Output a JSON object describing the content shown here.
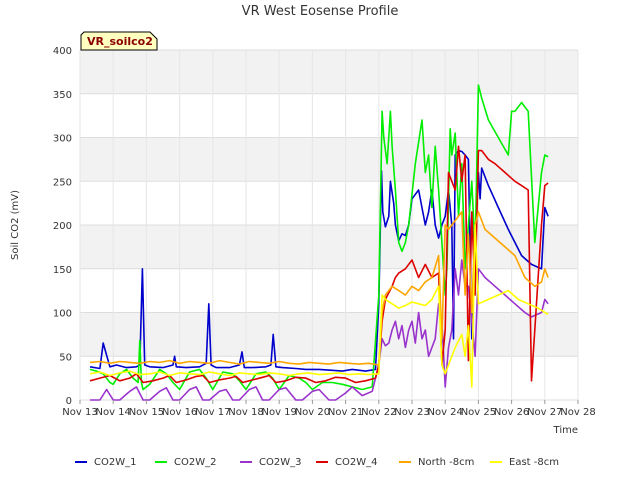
{
  "chart_data": {
    "type": "line",
    "title": "VR West Eosense Profile",
    "xlabel": "Time",
    "ylabel": "Soil CO2 (mV)",
    "ylim": [
      0,
      400
    ],
    "yticks": [
      0,
      50,
      100,
      150,
      200,
      250,
      300,
      350,
      400
    ],
    "xlim": [
      13,
      28
    ],
    "xticks": [
      {
        "value": 13,
        "label": "Nov 13"
      },
      {
        "value": 14,
        "label": "Nov 14"
      },
      {
        "value": 15,
        "label": "Nov 15"
      },
      {
        "value": 16,
        "label": "Nov 16"
      },
      {
        "value": 17,
        "label": "Nov 17"
      },
      {
        "value": 18,
        "label": "Nov 18"
      },
      {
        "value": 19,
        "label": "Nov 19"
      },
      {
        "value": 20,
        "label": "Nov 20"
      },
      {
        "value": 21,
        "label": "Nov 21"
      },
      {
        "value": 22,
        "label": "Nov 22"
      },
      {
        "value": 23,
        "label": "Nov 23"
      },
      {
        "value": 24,
        "label": "Nov 24"
      },
      {
        "value": 25,
        "label": "Nov 25"
      },
      {
        "value": 26,
        "label": "Nov 26"
      },
      {
        "value": 27,
        "label": "Nov 27"
      },
      {
        "value": 28,
        "label": "Nov 28"
      }
    ],
    "tag": "VR_soilco2",
    "grid": true,
    "legend_position": "bottom",
    "series": [
      {
        "name": "CO2W_1",
        "color": "#0000cc",
        "x": [
          13.3,
          13.6,
          13.7,
          13.9,
          14.1,
          14.4,
          14.7,
          14.8,
          14.88,
          14.95,
          15.1,
          15.5,
          15.8,
          15.85,
          15.9,
          16.2,
          16.6,
          16.8,
          16.88,
          16.95,
          17.1,
          17.5,
          17.8,
          17.88,
          17.95,
          18.2,
          18.6,
          18.75,
          18.82,
          18.9,
          19.1,
          19.5,
          19.8,
          20.2,
          20.6,
          20.9,
          21.2,
          21.6,
          21.9,
          22.0,
          22.08,
          22.12,
          22.2,
          22.3,
          22.35,
          22.45,
          22.5,
          22.6,
          22.7,
          22.8,
          22.9,
          23.0,
          23.2,
          23.4,
          23.5,
          23.6,
          23.7,
          23.8,
          23.9,
          24.0,
          24.1,
          24.2,
          24.25,
          24.3,
          24.4,
          24.5,
          24.6,
          24.7,
          24.8,
          24.9,
          25.0,
          25.05,
          25.1,
          25.3,
          25.6,
          25.9,
          26.3,
          26.6,
          26.9,
          27.0,
          27.1
        ],
        "y": [
          38,
          36,
          65,
          38,
          40,
          37,
          38,
          40,
          150,
          40,
          38,
          37,
          40,
          50,
          38,
          37,
          38,
          42,
          110,
          40,
          37,
          37,
          40,
          55,
          37,
          37,
          38,
          40,
          75,
          38,
          37,
          36,
          35,
          35,
          34,
          33,
          35,
          33,
          35,
          110,
          262,
          215,
          198,
          210,
          250,
          225,
          200,
          182,
          190,
          188,
          200,
          230,
          240,
          200,
          215,
          240,
          200,
          185,
          200,
          210,
          240,
          200,
          70,
          280,
          285,
          284,
          280,
          275,
          70,
          180,
          260,
          230,
          265,
          245,
          220,
          195,
          165,
          155,
          150,
          220,
          210
        ]
      },
      {
        "name": "CO2W_2",
        "color": "#00ee00",
        "x": [
          13.3,
          13.5,
          13.7,
          13.9,
          14.0,
          14.2,
          14.4,
          14.6,
          14.75,
          14.8,
          14.85,
          14.9,
          15.1,
          15.4,
          15.6,
          15.8,
          16.0,
          16.3,
          16.6,
          16.8,
          17.0,
          17.3,
          17.6,
          17.8,
          18.0,
          18.3,
          18.6,
          18.8,
          19.0,
          19.3,
          19.6,
          19.8,
          20.0,
          20.3,
          20.6,
          20.9,
          21.2,
          21.5,
          21.8,
          22.0,
          22.1,
          22.15,
          22.25,
          22.35,
          22.4,
          22.5,
          22.6,
          22.7,
          22.8,
          22.9,
          23.1,
          23.3,
          23.4,
          23.5,
          23.6,
          23.7,
          23.8,
          23.9,
          24.0,
          24.05,
          24.15,
          24.2,
          24.3,
          24.4,
          24.5,
          24.6,
          24.7,
          24.8,
          24.9,
          25.0,
          25.1,
          25.3,
          25.6,
          25.9,
          26.0,
          26.1,
          26.3,
          26.5,
          26.7,
          26.9,
          27.0,
          27.1
        ],
        "y": [
          35,
          33,
          30,
          20,
          18,
          30,
          35,
          25,
          20,
          68,
          20,
          12,
          18,
          35,
          30,
          20,
          12,
          32,
          35,
          25,
          12,
          32,
          30,
          22,
          12,
          30,
          32,
          25,
          12,
          28,
          25,
          20,
          12,
          20,
          20,
          18,
          15,
          12,
          15,
          120,
          330,
          300,
          270,
          330,
          290,
          240,
          180,
          170,
          180,
          200,
          270,
          320,
          260,
          280,
          220,
          290,
          240,
          180,
          120,
          150,
          310,
          280,
          305,
          210,
          270,
          150,
          200,
          250,
          170,
          360,
          345,
          320,
          300,
          280,
          330,
          330,
          340,
          330,
          180,
          260,
          280,
          278
        ]
      },
      {
        "name": "CO2W_3",
        "color": "#9933cc",
        "x": [
          13.3,
          13.6,
          13.8,
          14.0,
          14.2,
          14.5,
          14.7,
          14.9,
          15.1,
          15.4,
          15.6,
          15.8,
          16.0,
          16.3,
          16.5,
          16.7,
          16.9,
          17.2,
          17.4,
          17.6,
          17.8,
          18.1,
          18.3,
          18.5,
          18.7,
          19.0,
          19.2,
          19.5,
          19.7,
          20.0,
          20.2,
          20.5,
          20.7,
          21.0,
          21.2,
          21.5,
          21.8,
          22.0,
          22.1,
          22.2,
          22.3,
          22.4,
          22.5,
          22.6,
          22.7,
          22.8,
          22.9,
          23.0,
          23.1,
          23.2,
          23.3,
          23.4,
          23.5,
          23.6,
          23.7,
          23.8,
          23.9,
          24.0,
          24.1,
          24.2,
          24.3,
          24.4,
          24.5,
          24.6,
          24.7,
          24.8,
          24.9,
          25.0,
          25.2,
          25.5,
          25.8,
          26.1,
          26.4,
          26.6,
          26.9,
          27.0,
          27.1
        ],
        "y": [
          0,
          0,
          12,
          0,
          0,
          10,
          15,
          0,
          0,
          10,
          14,
          0,
          0,
          12,
          15,
          0,
          0,
          10,
          12,
          0,
          0,
          12,
          15,
          0,
          0,
          12,
          14,
          0,
          0,
          10,
          12,
          0,
          0,
          8,
          15,
          5,
          10,
          40,
          70,
          62,
          65,
          80,
          90,
          70,
          85,
          60,
          80,
          90,
          65,
          100,
          70,
          80,
          50,
          60,
          70,
          110,
          90,
          15,
          60,
          80,
          150,
          120,
          160,
          130,
          130,
          90,
          50,
          150,
          140,
          130,
          120,
          110,
          100,
          95,
          100,
          115,
          110
        ]
      },
      {
        "name": "CO2W_4",
        "color": "#dd0000",
        "x": [
          13.3,
          13.6,
          13.9,
          14.2,
          14.5,
          14.7,
          14.9,
          15.2,
          15.5,
          15.7,
          15.9,
          16.2,
          16.5,
          16.7,
          16.9,
          17.2,
          17.5,
          17.7,
          17.9,
          18.2,
          18.5,
          18.7,
          18.9,
          19.2,
          19.5,
          19.8,
          20.1,
          20.4,
          20.7,
          21.0,
          21.3,
          21.6,
          21.9,
          22.0,
          22.1,
          22.2,
          22.4,
          22.5,
          22.6,
          22.8,
          22.9,
          23.0,
          23.2,
          23.4,
          23.6,
          23.8,
          23.9,
          24.0,
          24.1,
          24.2,
          24.3,
          24.4,
          24.5,
          24.6,
          24.7,
          24.8,
          24.9,
          25.0,
          25.1,
          25.3,
          25.5,
          25.8,
          26.1,
          26.3,
          26.5,
          26.6,
          26.7,
          26.9,
          27.0,
          27.1
        ],
        "y": [
          22,
          25,
          28,
          22,
          25,
          30,
          20,
          22,
          25,
          28,
          20,
          23,
          27,
          28,
          20,
          23,
          25,
          27,
          20,
          23,
          26,
          28,
          20,
          22,
          26,
          25,
          20,
          22,
          26,
          25,
          20,
          22,
          25,
          40,
          90,
          115,
          130,
          140,
          145,
          150,
          155,
          160,
          140,
          155,
          140,
          145,
          40,
          80,
          260,
          250,
          240,
          290,
          250,
          280,
          45,
          215,
          120,
          285,
          285,
          275,
          270,
          260,
          250,
          245,
          240,
          22,
          80,
          200,
          245,
          248
        ]
      },
      {
        "name": "North -8cm",
        "color": "#ffa500",
        "x": [
          13.3,
          13.6,
          13.9,
          14.2,
          14.5,
          14.8,
          15.1,
          15.4,
          15.7,
          16.0,
          16.3,
          16.6,
          16.9,
          17.2,
          17.5,
          17.8,
          18.1,
          18.4,
          18.7,
          19.0,
          19.3,
          19.6,
          19.9,
          20.2,
          20.5,
          20.8,
          21.1,
          21.4,
          21.7,
          22.0,
          22.1,
          22.2,
          22.4,
          22.6,
          22.8,
          23.0,
          23.2,
          23.4,
          23.6,
          23.8,
          23.9,
          24.0,
          24.1,
          24.3,
          24.5,
          24.6,
          24.7,
          24.8,
          24.9,
          25.0,
          25.2,
          25.5,
          25.8,
          26.1,
          26.4,
          26.7,
          26.9,
          27.0,
          27.1
        ],
        "y": [
          43,
          44,
          42,
          44,
          43,
          42,
          44,
          43,
          45,
          42,
          44,
          43,
          42,
          45,
          43,
          41,
          44,
          43,
          42,
          44,
          42,
          41,
          43,
          42,
          41,
          43,
          42,
          41,
          42,
          40,
          100,
          120,
          130,
          125,
          120,
          130,
          125,
          135,
          140,
          165,
          70,
          200,
          195,
          205,
          215,
          120,
          190,
          100,
          200,
          215,
          195,
          185,
          175,
          165,
          140,
          130,
          135,
          150,
          140
        ]
      },
      {
        "name": "East -8cm",
        "color": "#ffff00",
        "x": [
          13.3,
          13.6,
          13.9,
          14.2,
          14.5,
          14.8,
          15.1,
          15.4,
          15.7,
          16.0,
          16.3,
          16.6,
          16.9,
          17.2,
          17.5,
          17.8,
          18.1,
          18.4,
          18.7,
          19.0,
          19.3,
          19.6,
          19.9,
          20.2,
          20.5,
          20.8,
          21.1,
          21.4,
          21.7,
          22.0,
          22.1,
          22.2,
          22.4,
          22.6,
          22.8,
          23.0,
          23.2,
          23.4,
          23.6,
          23.8,
          23.9,
          24.0,
          24.1,
          24.3,
          24.5,
          24.6,
          24.7,
          24.8,
          24.9,
          25.0,
          25.3,
          25.6,
          25.9,
          26.2,
          26.5,
          26.8,
          27.0,
          27.1
        ],
        "y": [
          30,
          32,
          28,
          31,
          33,
          29,
          30,
          32,
          28,
          31,
          30,
          29,
          32,
          30,
          28,
          31,
          30,
          29,
          31,
          30,
          28,
          30,
          31,
          29,
          30,
          31,
          29,
          30,
          29,
          30,
          120,
          115,
          110,
          105,
          108,
          112,
          110,
          108,
          115,
          130,
          40,
          30,
          40,
          60,
          75,
          50,
          85,
          15,
          200,
          110,
          115,
          120,
          125,
          115,
          110,
          105,
          100,
          98
        ]
      }
    ]
  }
}
